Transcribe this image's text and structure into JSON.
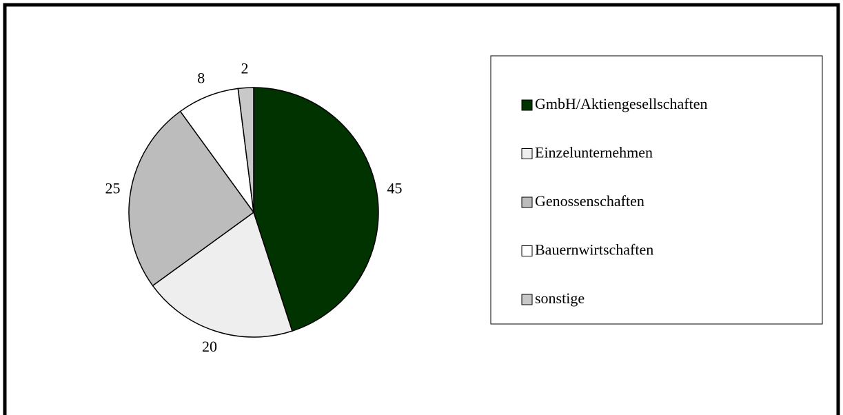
{
  "chart_data": {
    "type": "pie",
    "categories": [
      "GmbH/Aktiengesellschaften",
      "Einzelunternehmen",
      "Genossenschaften",
      "Bauernwirtschaften",
      "sonstige"
    ],
    "values": [
      45,
      20,
      25,
      8,
      2
    ],
    "colors": [
      "#003300",
      "#eeeeee",
      "#bcbcbc",
      "#ffffff",
      "#c8c8c8"
    ],
    "legend": "right"
  }
}
